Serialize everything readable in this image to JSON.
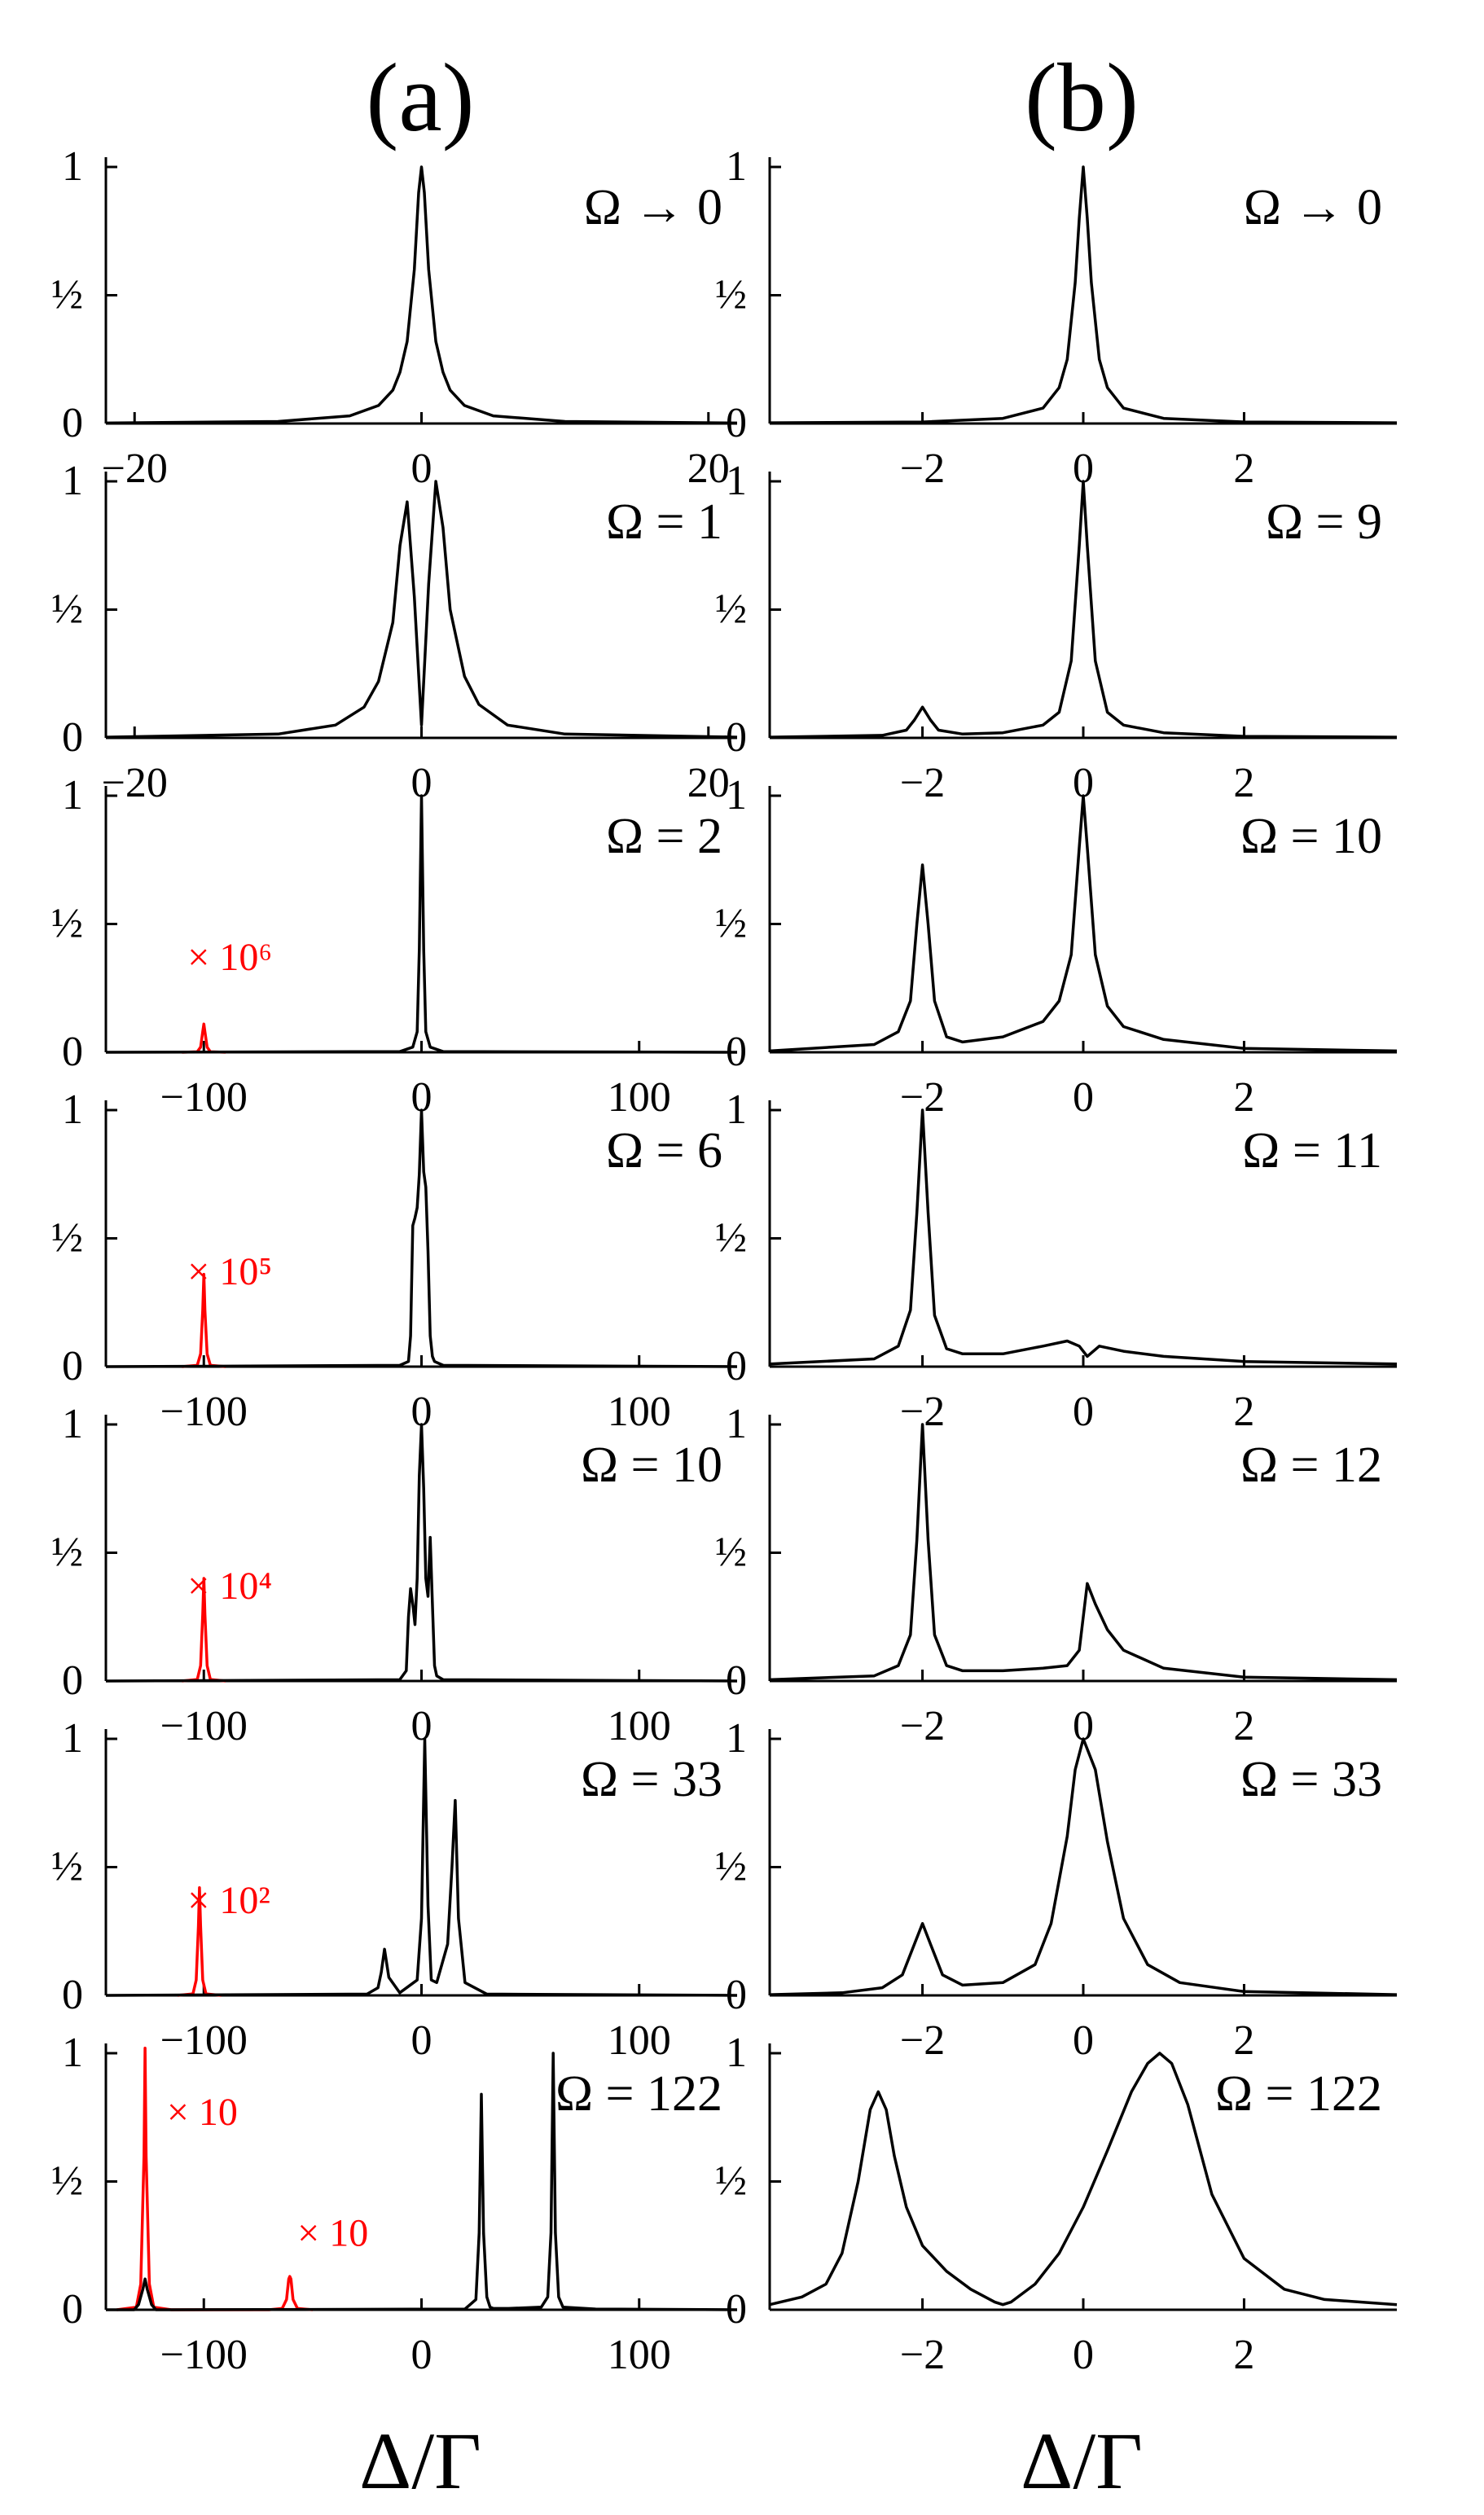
{
  "columns": [
    {
      "label": "(a)",
      "xlabel": "Δ/Γ"
    },
    {
      "label": "(b)",
      "xlabel": "Δ/Γ"
    }
  ],
  "y_tick_labels": [
    "0",
    "½",
    "1"
  ],
  "colors": {
    "main": "#000000",
    "inset": "#ff0000"
  },
  "chart_data": [
    {
      "type": "line",
      "column": "(a)",
      "annotation": "Ω → 0",
      "xlim": [
        -22,
        22
      ],
      "ylim": [
        0,
        1
      ],
      "xticks": [
        -20,
        0,
        20
      ],
      "xtick_labels": [
        "−20",
        "0",
        "20"
      ],
      "series": [
        {
          "color": "#000000",
          "x": [
            -22,
            -10,
            -5,
            -3,
            -2,
            -1.5,
            -1,
            -0.5,
            -0.2,
            0,
            0.2,
            0.5,
            1,
            1.5,
            2,
            3,
            5,
            10,
            22
          ],
          "y": [
            0.002,
            0.008,
            0.03,
            0.07,
            0.13,
            0.2,
            0.32,
            0.6,
            0.9,
            1,
            0.9,
            0.6,
            0.32,
            0.2,
            0.13,
            0.07,
            0.03,
            0.008,
            0.002
          ]
        }
      ]
    },
    {
      "type": "line",
      "column": "(b)",
      "annotation": "Ω → 0",
      "xlim": [
        -3.9,
        3.9
      ],
      "ylim": [
        0,
        1
      ],
      "xticks": [
        -2,
        0,
        2
      ],
      "xtick_labels": [
        "−2",
        "0",
        "2"
      ],
      "series": [
        {
          "color": "#000000",
          "x": [
            -3.9,
            -2,
            -1,
            -0.5,
            -0.3,
            -0.2,
            -0.1,
            -0.05,
            0,
            0.05,
            0.1,
            0.2,
            0.3,
            0.5,
            1,
            2,
            3.9
          ],
          "y": [
            0.003,
            0.006,
            0.02,
            0.06,
            0.14,
            0.25,
            0.55,
            0.8,
            1,
            0.8,
            0.55,
            0.25,
            0.14,
            0.06,
            0.02,
            0.006,
            0.003
          ]
        }
      ]
    },
    {
      "type": "line",
      "column": "(a)",
      "annotation": "Ω = 1",
      "xlim": [
        -22,
        22
      ],
      "ylim": [
        0,
        1
      ],
      "xticks": [
        -20,
        0,
        20
      ],
      "xtick_labels": [
        "−20",
        "0",
        "20"
      ],
      "series": [
        {
          "color": "#000000",
          "x": [
            -22,
            -10,
            -6,
            -4,
            -3,
            -2,
            -1.5,
            -1,
            -0.5,
            0,
            0.5,
            1,
            1.5,
            2,
            3,
            4,
            6,
            10,
            22
          ],
          "y": [
            0.003,
            0.015,
            0.05,
            0.12,
            0.22,
            0.45,
            0.75,
            0.92,
            0.55,
            0.05,
            0.6,
            1,
            0.82,
            0.5,
            0.24,
            0.13,
            0.05,
            0.015,
            0.003
          ]
        }
      ]
    },
    {
      "type": "line",
      "column": "(b)",
      "annotation": "Ω = 9",
      "xlim": [
        -3.9,
        3.9
      ],
      "ylim": [
        0,
        1
      ],
      "xticks": [
        -2,
        0,
        2
      ],
      "xtick_labels": [
        "−2",
        "0",
        "2"
      ],
      "series": [
        {
          "color": "#000000",
          "x": [
            -3.9,
            -2.5,
            -2.2,
            -2.1,
            -2.0,
            -1.9,
            -1.8,
            -1.5,
            -1,
            -0.5,
            -0.3,
            -0.15,
            -0.05,
            0,
            0.05,
            0.15,
            0.3,
            0.5,
            1,
            2,
            3.9
          ],
          "y": [
            0.003,
            0.01,
            0.03,
            0.07,
            0.12,
            0.07,
            0.03,
            0.015,
            0.02,
            0.05,
            0.1,
            0.3,
            0.75,
            1,
            0.75,
            0.3,
            0.1,
            0.05,
            0.02,
            0.006,
            0.003
          ]
        }
      ]
    },
    {
      "type": "line",
      "column": "(a)",
      "annotation": "Ω = 2",
      "xlim": [
        -145,
        145
      ],
      "ylim": [
        0,
        1
      ],
      "xticks": [
        -100,
        0,
        100
      ],
      "xtick_labels": [
        "−100",
        "0",
        "100"
      ],
      "inset_label": "× 10⁶",
      "series": [
        {
          "color": "#000000",
          "x": [
            -145,
            -10,
            -4,
            -2,
            -1,
            0,
            1,
            2,
            4,
            10,
            145
          ],
          "y": [
            0,
            0.003,
            0.02,
            0.08,
            0.4,
            1,
            0.4,
            0.08,
            0.02,
            0.003,
            0
          ]
        },
        {
          "color": "#ff0000",
          "x": [
            -110,
            -103,
            -101.5,
            -100.5,
            -100,
            -99.5,
            -98.5,
            -97,
            -90
          ],
          "y": [
            0,
            0.002,
            0.02,
            0.08,
            0.11,
            0.08,
            0.02,
            0.002,
            0
          ]
        }
      ]
    },
    {
      "type": "line",
      "column": "(b)",
      "annotation": "Ω = 10",
      "xlim": [
        -3.9,
        3.9
      ],
      "ylim": [
        0,
        1
      ],
      "xticks": [
        -2,
        0,
        2
      ],
      "xtick_labels": [
        "−2",
        "0",
        "2"
      ],
      "series": [
        {
          "color": "#000000",
          "x": [
            -3.9,
            -2.6,
            -2.3,
            -2.15,
            -2.07,
            -2.0,
            -1.93,
            -1.85,
            -1.7,
            -1.5,
            -1,
            -0.5,
            -0.3,
            -0.15,
            -0.05,
            0,
            0.05,
            0.15,
            0.3,
            0.5,
            1,
            2,
            3.9
          ],
          "y": [
            0.005,
            0.03,
            0.08,
            0.2,
            0.5,
            0.73,
            0.5,
            0.2,
            0.06,
            0.04,
            0.06,
            0.12,
            0.2,
            0.38,
            0.8,
            1,
            0.8,
            0.38,
            0.18,
            0.1,
            0.05,
            0.015,
            0.005
          ]
        }
      ]
    },
    {
      "type": "line",
      "column": "(a)",
      "annotation": "Ω = 6",
      "xlim": [
        -145,
        145
      ],
      "ylim": [
        0,
        1
      ],
      "xticks": [
        -100,
        0,
        100
      ],
      "xtick_labels": [
        "−100",
        "0",
        "100"
      ],
      "inset_label": "× 10⁵",
      "series": [
        {
          "color": "#000000",
          "x": [
            -145,
            -10,
            -6,
            -5,
            -4,
            -3,
            -2,
            -1,
            0,
            1,
            2,
            3,
            4,
            5,
            6,
            10,
            145
          ],
          "y": [
            0,
            0.005,
            0.02,
            0.12,
            0.55,
            0.58,
            0.62,
            0.75,
            1,
            0.76,
            0.7,
            0.45,
            0.12,
            0.04,
            0.02,
            0.005,
            0
          ]
        },
        {
          "color": "#ff0000",
          "x": [
            -110,
            -103,
            -101.5,
            -100.5,
            -100,
            -99.5,
            -98.5,
            -97,
            -90
          ],
          "y": [
            0,
            0.005,
            0.05,
            0.22,
            0.36,
            0.22,
            0.05,
            0.005,
            0
          ]
        }
      ]
    },
    {
      "type": "line",
      "column": "(b)",
      "annotation": "Ω = 11",
      "xlim": [
        -3.9,
        3.9
      ],
      "ylim": [
        0,
        1
      ],
      "xticks": [
        -2,
        0,
        2
      ],
      "xtick_labels": [
        "−2",
        "0",
        "2"
      ],
      "series": [
        {
          "color": "#000000",
          "x": [
            -3.9,
            -2.6,
            -2.3,
            -2.15,
            -2.07,
            -2.0,
            -1.93,
            -1.85,
            -1.7,
            -1.5,
            -1,
            -0.5,
            -0.2,
            -0.05,
            0.05,
            0.2,
            0.5,
            1,
            2,
            3.9
          ],
          "y": [
            0.01,
            0.03,
            0.08,
            0.22,
            0.6,
            1,
            0.6,
            0.2,
            0.07,
            0.05,
            0.05,
            0.08,
            0.1,
            0.08,
            0.04,
            0.08,
            0.06,
            0.04,
            0.02,
            0.01
          ]
        }
      ]
    },
    {
      "type": "line",
      "column": "(a)",
      "annotation": "Ω = 10",
      "xlim": [
        -145,
        145
      ],
      "ylim": [
        0,
        1
      ],
      "xticks": [
        -100,
        0,
        100
      ],
      "xtick_labels": [
        "−100",
        "0",
        "100"
      ],
      "inset_label": "× 10⁴",
      "series": [
        {
          "color": "#000000",
          "x": [
            -145,
            -10,
            -7,
            -6,
            -5,
            -4,
            -3,
            -2,
            -1,
            0,
            1,
            2,
            3,
            4,
            5,
            6,
            7,
            10,
            145
          ],
          "y": [
            0,
            0.005,
            0.04,
            0.25,
            0.36,
            0.3,
            0.22,
            0.4,
            0.8,
            1,
            0.75,
            0.4,
            0.33,
            0.56,
            0.3,
            0.06,
            0.02,
            0.005,
            0
          ]
        },
        {
          "color": "#ff0000",
          "x": [
            -110,
            -103,
            -101.5,
            -100.5,
            -100,
            -99.5,
            -98.5,
            -97,
            -90
          ],
          "y": [
            0,
            0.006,
            0.06,
            0.26,
            0.4,
            0.26,
            0.06,
            0.006,
            0
          ]
        }
      ]
    },
    {
      "type": "line",
      "column": "(b)",
      "annotation": "Ω = 12",
      "xlim": [
        -3.9,
        3.9
      ],
      "ylim": [
        0,
        1
      ],
      "xticks": [
        -2,
        0,
        2
      ],
      "xtick_labels": [
        "−2",
        "0",
        "2"
      ],
      "series": [
        {
          "color": "#000000",
          "x": [
            -3.9,
            -2.6,
            -2.3,
            -2.15,
            -2.07,
            -2.0,
            -1.93,
            -1.85,
            -1.7,
            -1.5,
            -1,
            -0.5,
            -0.2,
            -0.05,
            0.05,
            0.15,
            0.3,
            0.5,
            1,
            2,
            3.9
          ],
          "y": [
            0.005,
            0.02,
            0.06,
            0.18,
            0.55,
            1,
            0.55,
            0.18,
            0.06,
            0.04,
            0.04,
            0.05,
            0.06,
            0.12,
            0.38,
            0.3,
            0.2,
            0.12,
            0.05,
            0.015,
            0.005
          ]
        }
      ]
    },
    {
      "type": "line",
      "column": "(a)",
      "annotation": "Ω = 33",
      "xlim": [
        -145,
        145
      ],
      "ylim": [
        0,
        1
      ],
      "xticks": [
        -100,
        0,
        100
      ],
      "xtick_labels": [
        "−100",
        "0",
        "100"
      ],
      "inset_label": "× 10²",
      "series": [
        {
          "color": "#000000",
          "x": [
            -145,
            -25,
            -20,
            -18.5,
            -17,
            -15,
            -10,
            -2,
            0,
            1.5,
            3,
            4.5,
            7,
            12,
            14,
            15.5,
            17,
            20,
            30,
            145
          ],
          "y": [
            0,
            0.005,
            0.03,
            0.09,
            0.18,
            0.07,
            0.01,
            0.06,
            0.3,
            1,
            0.35,
            0.06,
            0.05,
            0.2,
            0.5,
            0.76,
            0.3,
            0.05,
            0.005,
            0
          ]
        },
        {
          "color": "#ff0000",
          "x": [
            -112,
            -105,
            -103.5,
            -102.5,
            -102,
            -101.5,
            -100.5,
            -99,
            -92
          ],
          "y": [
            0,
            0.006,
            0.06,
            0.27,
            0.42,
            0.27,
            0.06,
            0.006,
            0
          ]
        }
      ]
    },
    {
      "type": "line",
      "column": "(b)",
      "annotation": "Ω = 33",
      "xlim": [
        -3.9,
        3.9
      ],
      "ylim": [
        0,
        1
      ],
      "xticks": [
        -2,
        0,
        2
      ],
      "xtick_labels": [
        "−2",
        "0",
        "2"
      ],
      "series": [
        {
          "color": "#000000",
          "x": [
            -3.9,
            -3,
            -2.5,
            -2.25,
            -2.1,
            -2.0,
            -1.9,
            -1.75,
            -1.5,
            -1,
            -0.6,
            -0.4,
            -0.2,
            -0.1,
            0,
            0.15,
            0.3,
            0.5,
            0.8,
            1.2,
            2,
            3.9
          ],
          "y": [
            0.003,
            0.01,
            0.03,
            0.08,
            0.2,
            0.28,
            0.2,
            0.08,
            0.04,
            0.05,
            0.12,
            0.28,
            0.62,
            0.88,
            1,
            0.88,
            0.6,
            0.3,
            0.12,
            0.05,
            0.015,
            0.003
          ]
        }
      ]
    },
    {
      "type": "line",
      "column": "(a)",
      "annotation": "Ω = 122",
      "xlim": [
        -145,
        145
      ],
      "ylim": [
        0,
        1
      ],
      "xticks": [
        -100,
        0,
        100
      ],
      "xtick_labels": [
        "−100",
        "0",
        "100"
      ],
      "inset_labels": [
        "× 10",
        "× 10"
      ],
      "series": [
        {
          "color": "#000000",
          "x": [
            -145,
            -132,
            -130,
            -128,
            -127,
            -126,
            -124,
            -122,
            -115,
            20,
            25,
            26.5,
            27.5,
            28.5,
            30,
            31.5,
            33,
            40,
            55,
            58,
            59.5,
            60.5,
            61.5,
            63,
            65,
            80,
            145
          ],
          "y": [
            0,
            0,
            0.02,
            0.08,
            0.12,
            0.08,
            0.02,
            0,
            0,
            0.003,
            0.04,
            0.3,
            0.84,
            0.3,
            0.05,
            0.01,
            0.005,
            0.005,
            0.01,
            0.05,
            0.3,
            1,
            0.3,
            0.05,
            0.01,
            0.003,
            0
          ]
        },
        {
          "color": "#ff0000",
          "x": [
            -140,
            -131,
            -129,
            -127.5,
            -127,
            -126.5,
            -125,
            -123,
            -115,
            -70,
            -64,
            -62,
            -61,
            -60.5,
            -60,
            -59,
            -57,
            -50
          ],
          "y": [
            0,
            0.01,
            0.1,
            0.6,
            1.02,
            0.6,
            0.1,
            0.01,
            0,
            0,
            0.005,
            0.04,
            0.12,
            0.13,
            0.12,
            0.04,
            0.005,
            0
          ]
        }
      ]
    },
    {
      "type": "line",
      "column": "(b)",
      "annotation": "Ω = 122",
      "xlim": [
        -3.9,
        3.9
      ],
      "ylim": [
        0,
        1
      ],
      "xticks": [
        -2,
        0,
        2
      ],
      "xtick_labels": [
        "−2",
        "0",
        "2"
      ],
      "series": [
        {
          "color": "#000000",
          "x": [
            -3.9,
            -3.5,
            -3.2,
            -3.0,
            -2.8,
            -2.65,
            -2.55,
            -2.45,
            -2.35,
            -2.2,
            -2.0,
            -1.7,
            -1.4,
            -1.1,
            -1.0,
            -0.9,
            -0.6,
            -0.3,
            0,
            0.3,
            0.6,
            0.8,
            0.95,
            1.1,
            1.3,
            1.6,
            2.0,
            2.5,
            3.0,
            3.9
          ],
          "y": [
            0.02,
            0.05,
            0.1,
            0.22,
            0.5,
            0.78,
            0.85,
            0.78,
            0.6,
            0.4,
            0.25,
            0.15,
            0.08,
            0.03,
            0.02,
            0.03,
            0.1,
            0.22,
            0.4,
            0.62,
            0.85,
            0.96,
            1,
            0.96,
            0.8,
            0.45,
            0.2,
            0.08,
            0.04,
            0.02
          ]
        }
      ]
    }
  ]
}
